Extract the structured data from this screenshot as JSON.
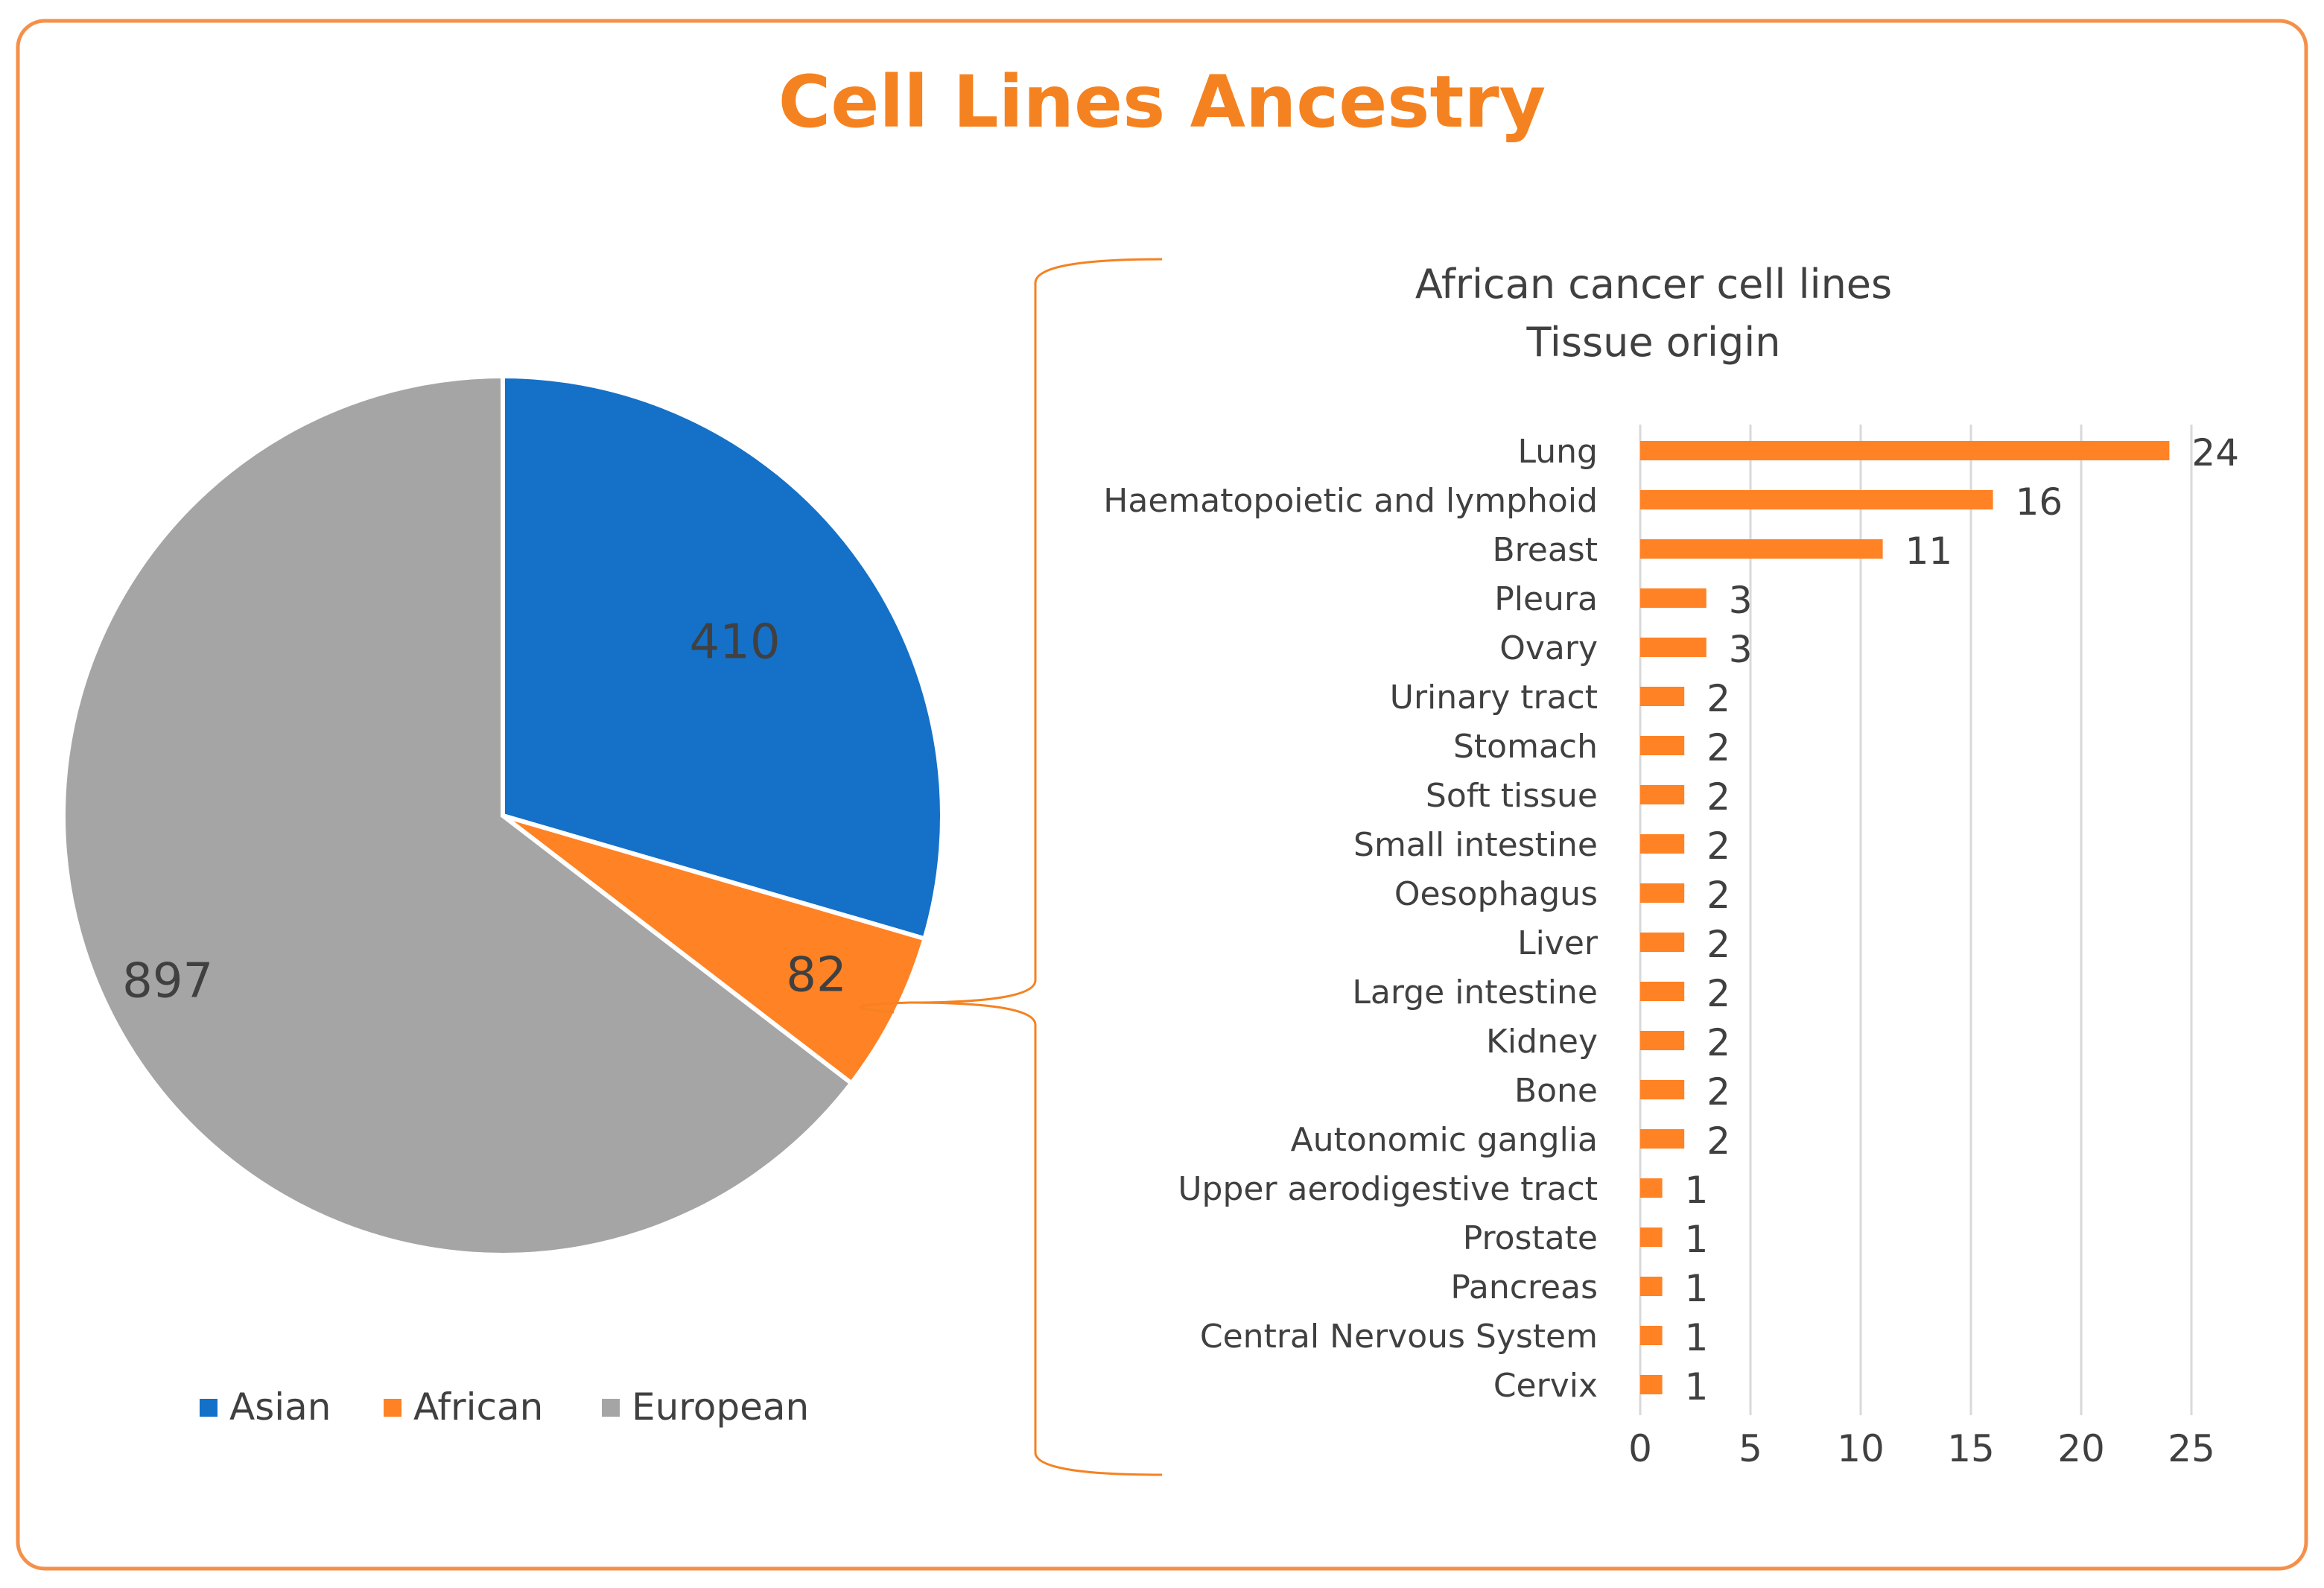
{
  "colors": {
    "accent": "#F58220",
    "asian": "#1570C8",
    "african": "#FF8224",
    "european": "#A5A5A5",
    "text": "#404040",
    "grid": "#D9D9D9",
    "frame": "#F5904A"
  },
  "title": "Cell Lines Ancestry",
  "chart_data": [
    {
      "type": "pie",
      "title": "Cell Lines Ancestry",
      "labels": [
        "Asian",
        "African",
        "European"
      ],
      "values": [
        410,
        82,
        897
      ],
      "legend": "bottom"
    },
    {
      "type": "bar",
      "orientation": "horizontal",
      "title": "African cancer cell lines",
      "subtitle": "Tissue origin",
      "categories": [
        "Lung",
        "Haematopoietic and lymphoid",
        "Breast",
        "Pleura",
        "Ovary",
        "Urinary tract",
        "Stomach",
        "Soft tissue",
        "Small intestine",
        "Oesophagus",
        "Liver",
        "Large intestine",
        "Kidney",
        "Bone",
        "Autonomic ganglia",
        "Upper aerodigestive tract",
        "Prostate",
        "Pancreas",
        "Central Nervous System",
        "Cervix"
      ],
      "values": [
        24,
        16,
        11,
        3,
        3,
        2,
        2,
        2,
        2,
        2,
        2,
        2,
        2,
        2,
        2,
        1,
        1,
        1,
        1,
        1
      ],
      "xlim": [
        0,
        25
      ],
      "xticks": [
        0,
        5,
        10,
        15,
        20,
        25
      ],
      "grid": true
    }
  ]
}
